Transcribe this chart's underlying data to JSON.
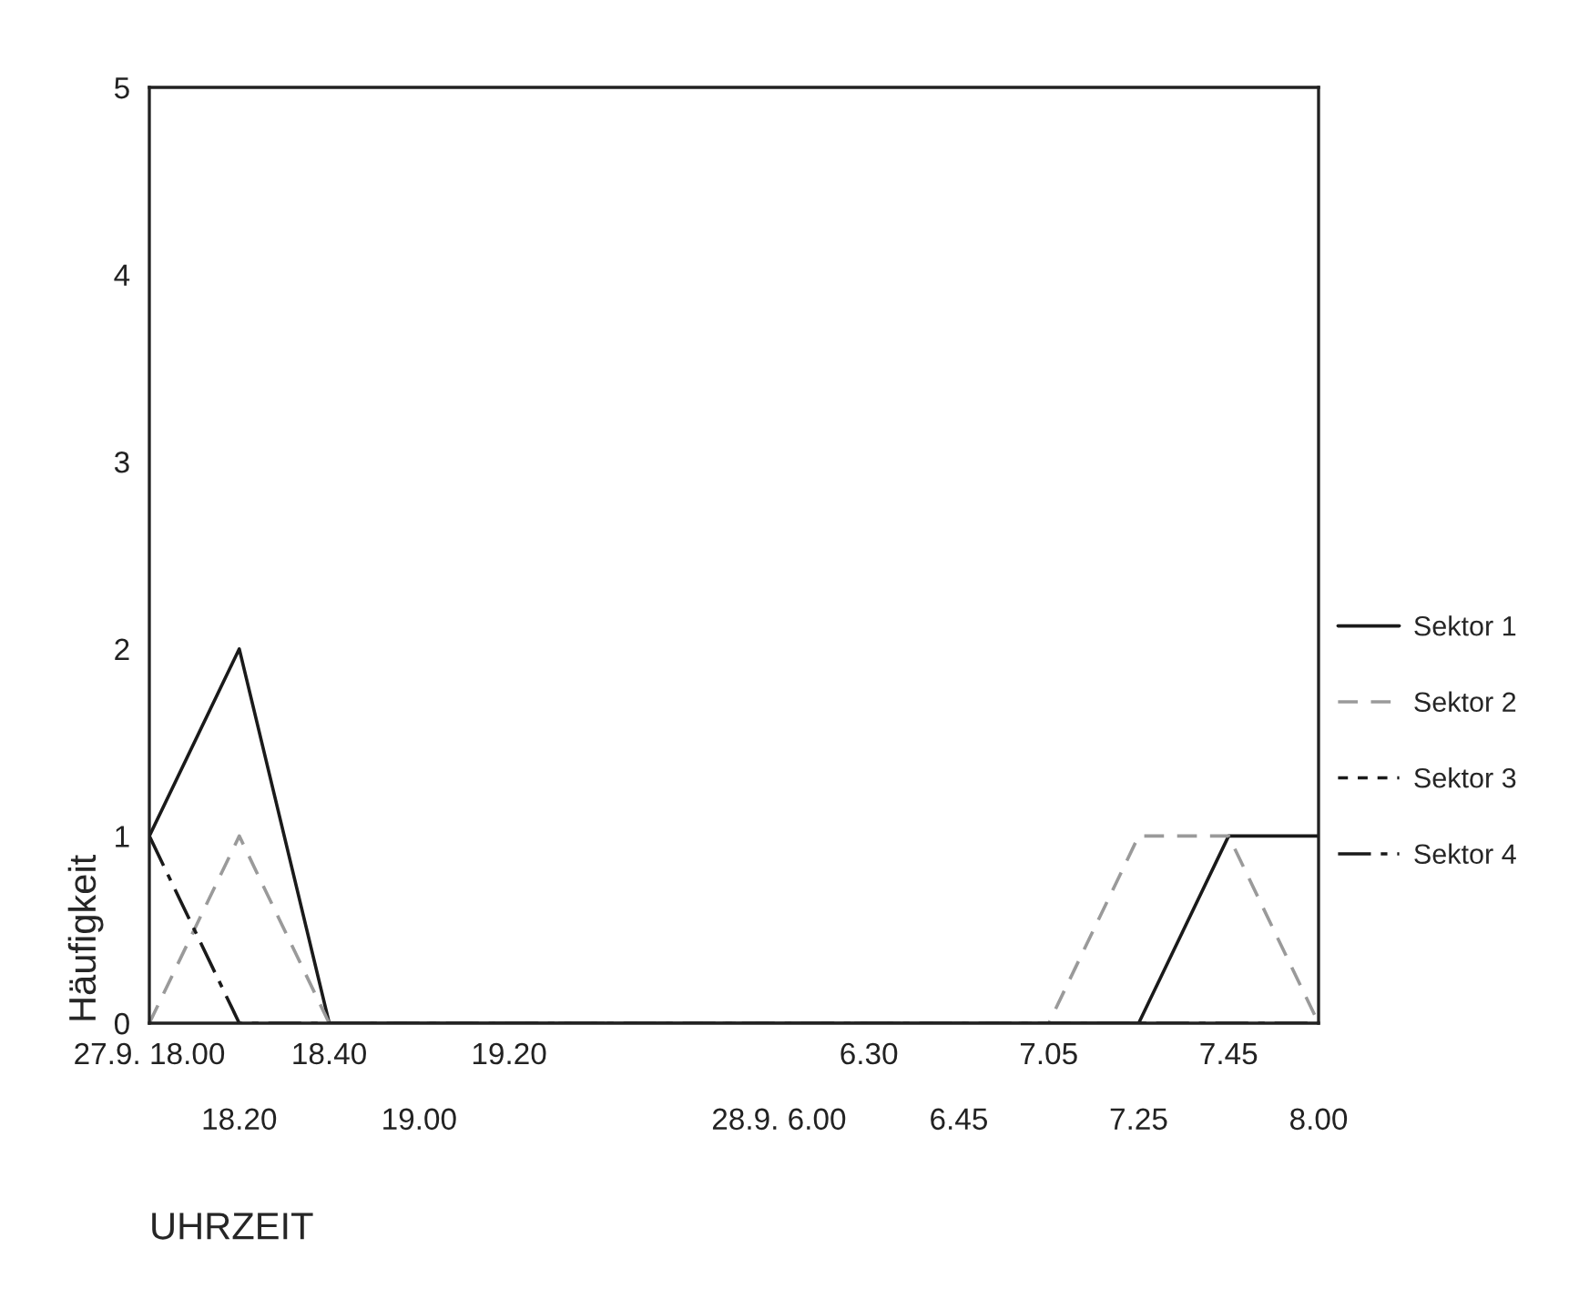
{
  "chart_data": {
    "type": "line",
    "xlabel": "UHRZEIT",
    "ylabel": "Häufigkeit",
    "categories": [
      "27.9. 18.00",
      "18.20",
      "18.40",
      "19.00",
      "19.20",
      null,
      null,
      "28.9. 6.00",
      "6.30",
      "6.45",
      "7.05",
      "7.25",
      "7.45",
      "8.00"
    ],
    "series": [
      {
        "name": "Sektor 1",
        "color": "#1a1a1a",
        "line_style": "solid",
        "values": [
          1,
          2,
          0,
          0,
          0,
          0,
          0,
          0,
          0,
          0,
          0,
          0,
          1,
          1
        ]
      },
      {
        "name": "Sektor 2",
        "color": "#9a9a9a",
        "line_style": "dashed",
        "values": [
          0,
          1,
          0,
          0,
          0,
          0,
          0,
          0,
          0,
          0,
          0,
          1,
          1,
          0
        ]
      },
      {
        "name": "Sektor 3",
        "color": "#1a1a1a",
        "line_style": "dotted",
        "values": [
          null,
          null,
          null,
          null,
          null,
          null,
          null,
          null,
          null,
          null,
          null,
          null,
          null,
          null
        ]
      },
      {
        "name": "Sektor 4",
        "color": "#1a1a1a",
        "line_style": "dashdot",
        "values": [
          1,
          0,
          0,
          0,
          0,
          0,
          0,
          0,
          0,
          0,
          0,
          0,
          0,
          0
        ]
      }
    ],
    "ylim": [
      0,
      5
    ],
    "yticks": [
      0,
      1,
      2,
      3,
      4,
      5
    ],
    "grid": false,
    "legend": "right",
    "marker": "none"
  }
}
